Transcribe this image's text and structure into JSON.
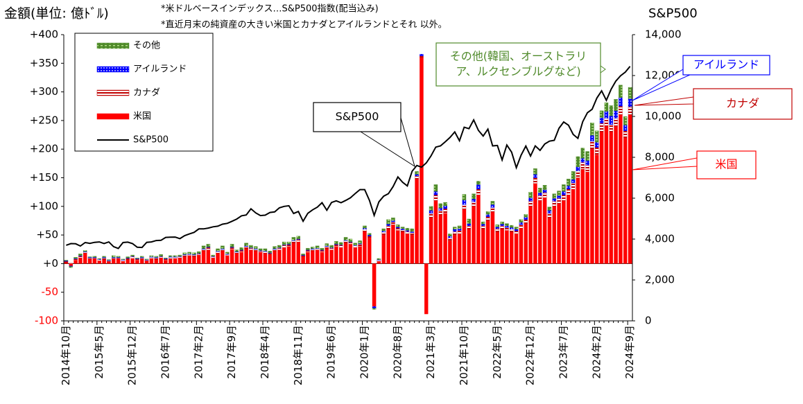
{
  "chart_data": {
    "type": "bar",
    "title": "金額(単位: 億ﾄﾞﾙ)",
    "notes": [
      "*米ドルベースインデックス…S&P500指数(配当込み)",
      "*直近月末の純資産の大きい米国とカナダとアイルランドとそれ 以外。"
    ],
    "y2_title": "S&P500",
    "categories": [
      "2014年10月",
      null,
      null,
      null,
      null,
      null,
      null,
      "2015年5月",
      null,
      null,
      null,
      null,
      null,
      null,
      "2015年12月",
      null,
      null,
      null,
      null,
      null,
      null,
      "2016年7月",
      null,
      null,
      null,
      null,
      null,
      null,
      "2017年2月",
      null,
      null,
      null,
      null,
      null,
      null,
      "2017年9月",
      null,
      null,
      null,
      null,
      null,
      null,
      "2018年4月",
      null,
      null,
      null,
      null,
      null,
      null,
      "2018年11月",
      null,
      null,
      null,
      null,
      null,
      null,
      "2019年6月",
      null,
      null,
      null,
      null,
      null,
      null,
      "2020年1月",
      null,
      null,
      null,
      null,
      null,
      null,
      "2020年8月",
      null,
      null,
      null,
      null,
      null,
      null,
      "2021年3月",
      null,
      null,
      null,
      null,
      null,
      null,
      "2021年10月",
      null,
      null,
      null,
      null,
      null,
      null,
      "2022年5月",
      null,
      null,
      null,
      null,
      null,
      null,
      "2022年12月",
      null,
      null,
      null,
      null,
      null,
      null,
      "2023年7月",
      null,
      null,
      null,
      null,
      null,
      null,
      "2024年2月",
      null,
      null,
      null,
      null,
      null,
      null,
      "2024年9月"
    ],
    "series": [
      {
        "name": "米国",
        "color": "#ff0000",
        "values": [
          2,
          -4,
          6,
          10,
          18,
          8,
          9,
          5,
          7,
          3,
          8,
          9,
          4,
          7,
          9,
          6,
          8,
          5,
          9,
          7,
          10,
          6,
          8,
          9,
          10,
          12,
          14,
          12,
          15,
          22,
          24,
          10,
          18,
          22,
          14,
          25,
          18,
          20,
          26,
          24,
          22,
          20,
          18,
          16,
          22,
          24,
          28,
          30,
          36,
          38,
          12,
          20,
          22,
          24,
          20,
          26,
          24,
          30,
          28,
          36,
          34,
          28,
          30,
          56,
          45,
          -75,
          4,
          50,
          60,
          68,
          58,
          55,
          52,
          50,
          148,
          360,
          -88,
          80,
          110,
          85,
          88,
          40,
          50,
          52,
          95,
          60,
          100,
          120,
          60,
          75,
          90,
          55,
          60,
          58,
          55,
          52,
          62,
          70,
          100,
          140,
          110,
          115,
          80,
          100,
          105,
          110,
          120,
          130,
          150,
          165,
          160,
          200,
          190,
          230,
          240,
          230,
          240,
          260,
          220,
          260
        ]
      },
      {
        "name": "カナダ",
        "color": "#c00000",
        "values": [
          2,
          1,
          2,
          3,
          2,
          2,
          1,
          2,
          3,
          2,
          2,
          1,
          2,
          2,
          3,
          2,
          2,
          1,
          2,
          3,
          2,
          2,
          3,
          2,
          2,
          3,
          2,
          3,
          2,
          3,
          4,
          2,
          3,
          3,
          2,
          3,
          2,
          3,
          4,
          3,
          3,
          2,
          3,
          2,
          3,
          3,
          4,
          3,
          4,
          4,
          2,
          3,
          3,
          2,
          3,
          4,
          3,
          3,
          4,
          4,
          3,
          3,
          4,
          4,
          3,
          0,
          2,
          5,
          6,
          5,
          4,
          4,
          4,
          4,
          5,
          3,
          0,
          8,
          10,
          8,
          8,
          5,
          6,
          6,
          8,
          6,
          8,
          10,
          6,
          7,
          8,
          6,
          6,
          5,
          5,
          5,
          6,
          7,
          9,
          10,
          9,
          9,
          8,
          9,
          9,
          10,
          10,
          11,
          12,
          12,
          12,
          14,
          13,
          15,
          14,
          13,
          14,
          15,
          12,
          14
        ]
      },
      {
        "name": "アイルランド",
        "color": "#0000ff",
        "values": [
          1,
          -1,
          1,
          1,
          1,
          1,
          1,
          1,
          1,
          1,
          1,
          1,
          1,
          1,
          1,
          1,
          1,
          1,
          1,
          1,
          1,
          1,
          1,
          1,
          1,
          1,
          1,
          1,
          1,
          1,
          1,
          1,
          1,
          1,
          1,
          1,
          1,
          1,
          1,
          1,
          1,
          1,
          1,
          1,
          1,
          1,
          1,
          1,
          1,
          1,
          1,
          1,
          1,
          1,
          1,
          1,
          1,
          1,
          1,
          1,
          1,
          1,
          1,
          2,
          2,
          -3,
          1,
          2,
          3,
          2,
          2,
          2,
          2,
          2,
          3,
          3,
          0,
          5,
          6,
          4,
          5,
          3,
          4,
          3,
          8,
          4,
          5,
          8,
          3,
          4,
          5,
          3,
          3,
          3,
          3,
          3,
          4,
          4,
          6,
          6,
          5,
          5,
          5,
          5,
          5,
          6,
          6,
          6,
          7,
          7,
          8,
          10,
          9,
          10,
          12,
          15,
          13,
          15,
          10,
          14
        ]
      },
      {
        "name": "その他",
        "color": "#4f8a2a",
        "values": [
          1,
          -2,
          2,
          3,
          2,
          1,
          2,
          1,
          2,
          1,
          3,
          2,
          1,
          2,
          2,
          1,
          2,
          1,
          2,
          2,
          3,
          1,
          2,
          2,
          2,
          3,
          3,
          3,
          3,
          5,
          5,
          2,
          4,
          5,
          3,
          5,
          3,
          4,
          5,
          4,
          4,
          3,
          4,
          3,
          4,
          4,
          5,
          4,
          5,
          5,
          2,
          3,
          3,
          4,
          3,
          4,
          4,
          5,
          4,
          5,
          5,
          4,
          5,
          4,
          3,
          -2,
          2,
          4,
          8,
          5,
          4,
          3,
          4,
          5,
          5,
          0,
          0,
          7,
          12,
          8,
          6,
          4,
          4,
          5,
          10,
          8,
          9,
          6,
          4,
          5,
          6,
          4,
          4,
          4,
          4,
          4,
          5,
          5,
          10,
          10,
          8,
          8,
          6,
          8,
          8,
          12,
          12,
          14,
          18,
          18,
          16,
          22,
          20,
          12,
          15,
          18,
          20,
          22,
          15,
          20
        ]
      },
      {
        "name": "S&P500",
        "type": "line",
        "axis": "y2",
        "color": "#000000",
        "values": [
          3700,
          3780,
          3770,
          3660,
          3830,
          3790,
          3840,
          3860,
          3780,
          3860,
          3630,
          3540,
          3830,
          3850,
          3780,
          3600,
          3590,
          3840,
          3860,
          3930,
          3940,
          4080,
          4090,
          4100,
          4020,
          4170,
          4250,
          4330,
          4500,
          4500,
          4540,
          4600,
          4630,
          4730,
          4770,
          4870,
          4980,
          5140,
          5180,
          5480,
          5280,
          5150,
          5170,
          5300,
          5330,
          5530,
          5600,
          5630,
          5250,
          5350,
          4870,
          5260,
          5430,
          5560,
          5780,
          5410,
          5790,
          5870,
          5780,
          5890,
          6020,
          6230,
          6420,
          6420,
          5890,
          5160,
          5820,
          6100,
          6220,
          6570,
          7040,
          6780,
          6600,
          7320,
          7600,
          7520,
          7730,
          8070,
          8500,
          8560,
          8760,
          8970,
          9240,
          8810,
          9470,
          9400,
          9830,
          9320,
          9040,
          9380,
          8560,
          8580,
          7870,
          8600,
          8250,
          7490,
          8100,
          8550,
          8060,
          8560,
          8340,
          8650,
          8790,
          8830,
          9420,
          9730,
          9570,
          9120,
          8930,
          9740,
          10180,
          10350,
          10900,
          11250,
          10790,
          11330,
          11730,
          11990,
          12170,
          12450
        ]
      }
    ],
    "ylim": [
      -100,
      400
    ],
    "yticks": [
      {
        "value": 400,
        "label": "+400"
      },
      {
        "value": 350,
        "label": "+350"
      },
      {
        "value": 300,
        "label": "+300"
      },
      {
        "value": 250,
        "label": "+250"
      },
      {
        "value": 200,
        "label": "+200"
      },
      {
        "value": 150,
        "label": "+150"
      },
      {
        "value": 100,
        "label": "+100"
      },
      {
        "value": 50,
        "label": "+50"
      },
      {
        "value": 0,
        "label": "+0"
      },
      -50,
      -100
    ],
    "y2lim": [
      0,
      14000
    ],
    "y2ticks": [
      0,
      {
        "value": 2000,
        "label": "2,000"
      },
      {
        "value": 4000,
        "label": "4,000"
      },
      {
        "value": 6000,
        "label": "6,000"
      },
      {
        "value": 8000,
        "label": "8,000"
      },
      {
        "value": 10000,
        "label": "10,000"
      },
      {
        "value": 12000,
        "label": "12,000"
      },
      {
        "value": 14000,
        "label": "14,000"
      }
    ],
    "negative_tick_color": "#ff0000",
    "annotations": [
      {
        "lines": [
          "S&P500"
        ],
        "color": "#000000"
      },
      {
        "lines": [
          "その他(韓国、オーストラリ",
          "ア、ルクセンブルグなど)"
        ],
        "color": "#4f8a2a"
      },
      {
        "lines": [
          "アイルランド"
        ],
        "color": "#0000ff"
      },
      {
        "lines": [
          "カナダ"
        ],
        "color": "#c00000"
      },
      {
        "lines": [
          "米国"
        ],
        "color": "#ff0000"
      }
    ]
  }
}
